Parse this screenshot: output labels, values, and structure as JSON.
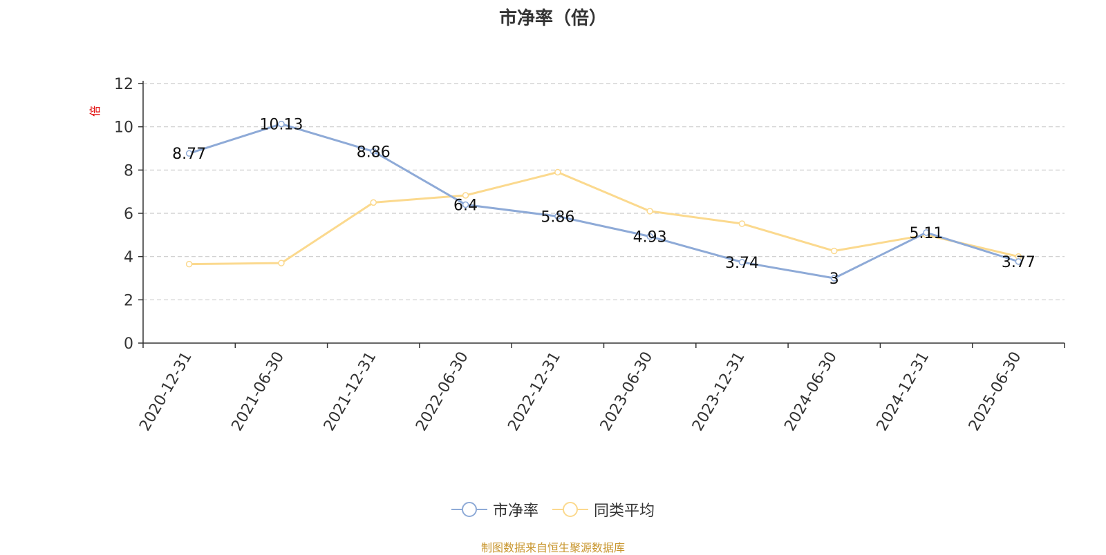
{
  "chart_data": {
    "type": "line",
    "title": "市净率（倍）",
    "ylabel": "倍",
    "categories": [
      "2020-12-31",
      "2021-06-30",
      "2021-12-31",
      "2022-06-30",
      "2022-12-31",
      "2023-06-30",
      "2023-12-31",
      "2024-06-30",
      "2024-12-31",
      "2025-06-30"
    ],
    "ylim": [
      0,
      12
    ],
    "yticks": [
      0,
      2,
      4,
      6,
      8,
      10,
      12
    ],
    "grid": true,
    "legend_position": "bottom",
    "series": [
      {
        "name": "市净率",
        "color": "#8eaad7",
        "values": [
          8.77,
          10.13,
          8.86,
          6.4,
          5.86,
          4.93,
          3.74,
          3,
          5.11,
          3.77
        ],
        "labels": [
          "8.77",
          "10.13",
          "8.86",
          "6.4",
          "5.86",
          "4.93",
          "3.74",
          "3",
          "5.11",
          "3.77"
        ]
      },
      {
        "name": "同类平均",
        "color": "#fbd98e",
        "values": [
          3.65,
          3.7,
          6.5,
          6.83,
          7.9,
          6.1,
          5.52,
          4.26,
          5.0,
          4.0
        ]
      }
    ]
  },
  "source": {
    "text": "制图数据来自恒生聚源数据库",
    "color": "#c8962e"
  }
}
